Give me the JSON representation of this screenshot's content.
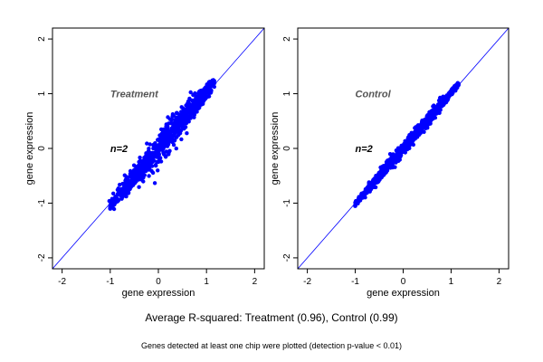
{
  "chart_data": [
    {
      "type": "scatter",
      "panel_label": "Treatment",
      "annotation": "n=2",
      "xlabel": "gene expression",
      "ylabel": "gene expression",
      "xlim": [
        -2.2,
        2.2
      ],
      "ylim": [
        -2.2,
        2.2
      ],
      "xticks": [
        -2,
        -1,
        0,
        1,
        2
      ],
      "yticks": [
        -2,
        -1,
        0,
        1,
        2
      ],
      "reference_line": "y = x",
      "point_color": "#0000ff",
      "line_color": "#0000ff",
      "grid": false,
      "legend": "none",
      "clusters": [
        {
          "x0": -1.0,
          "x1": 1.15,
          "center_slope": 1.05,
          "spread": 0.2,
          "count": 900
        }
      ],
      "points_anchor": [
        [
          -1.0,
          -1.1
        ],
        [
          -0.5,
          -0.5
        ],
        [
          0.0,
          0.0
        ],
        [
          0.5,
          0.5
        ],
        [
          1.0,
          1.1
        ],
        [
          1.15,
          1.2
        ]
      ]
    },
    {
      "type": "scatter",
      "panel_label": "Control",
      "annotation": "n=2",
      "xlabel": "gene expression",
      "ylabel": "gene expression",
      "xlim": [
        -2.2,
        2.2
      ],
      "ylim": [
        -2.2,
        2.2
      ],
      "xticks": [
        -2,
        -1,
        0,
        1,
        2
      ],
      "yticks": [
        -2,
        -1,
        0,
        1,
        2
      ],
      "reference_line": "y = x",
      "point_color": "#0000ff",
      "line_color": "#0000ff",
      "grid": false,
      "legend": "none",
      "clusters": [
        {
          "x0": -1.0,
          "x1": 1.15,
          "center_slope": 1.02,
          "spread": 0.09,
          "count": 900
        }
      ],
      "points_anchor": [
        [
          -1.0,
          -1.05
        ],
        [
          -0.5,
          -0.5
        ],
        [
          0.0,
          0.0
        ],
        [
          0.5,
          0.5
        ],
        [
          1.0,
          1.05
        ],
        [
          1.15,
          1.18
        ]
      ]
    }
  ],
  "caption": {
    "main": "Average R-squared: Treatment (0.96), Control (0.99)",
    "sub": "Genes detected at least one chip were plotted (detection p-value < 0.01)"
  }
}
